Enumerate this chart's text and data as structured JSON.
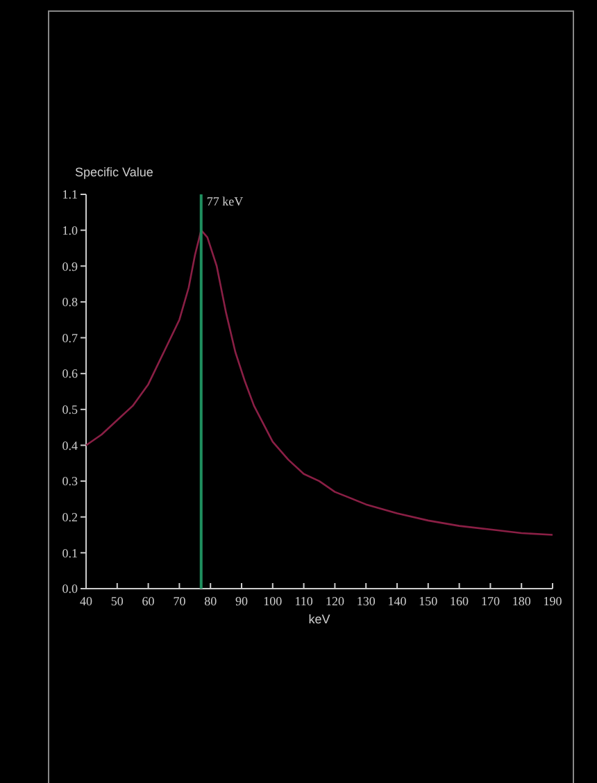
{
  "chart_data": {
    "type": "line",
    "ylabel": "Specific Value",
    "xlabel": "keV",
    "x": [
      40,
      45,
      50,
      55,
      60,
      65,
      70,
      73,
      75,
      77,
      79,
      82,
      85,
      88,
      91,
      94,
      100,
      105,
      110,
      115,
      120,
      130,
      140,
      150,
      160,
      170,
      180,
      190
    ],
    "series": [
      {
        "color": "#8a1f45",
        "values": [
          0.4,
          0.43,
          0.47,
          0.51,
          0.57,
          0.66,
          0.75,
          0.84,
          0.93,
          1.0,
          0.98,
          0.9,
          0.77,
          0.66,
          0.58,
          0.51,
          0.41,
          0.36,
          0.32,
          0.3,
          0.27,
          0.235,
          0.21,
          0.19,
          0.175,
          0.165,
          0.155,
          0.15
        ]
      }
    ],
    "xlim": [
      40,
      190
    ],
    "xticks": [
      40,
      50,
      60,
      70,
      80,
      90,
      100,
      110,
      120,
      130,
      140,
      150,
      160,
      170,
      180,
      190
    ],
    "ylim": [
      0,
      1.1
    ],
    "yticks": [
      {
        "value": 0,
        "label": "0.0"
      },
      0.1,
      0.2,
      0.3,
      0.4,
      0.5,
      0.6,
      0.7,
      0.8,
      0.9,
      {
        "value": 1,
        "label": "1.0"
      },
      1.1
    ],
    "ref_lines": [
      {
        "axis": "x",
        "value": 77,
        "label": "77 keV",
        "color": "#1f8f5f"
      }
    ],
    "grid": false,
    "marker": "none",
    "line_style": "solid"
  }
}
